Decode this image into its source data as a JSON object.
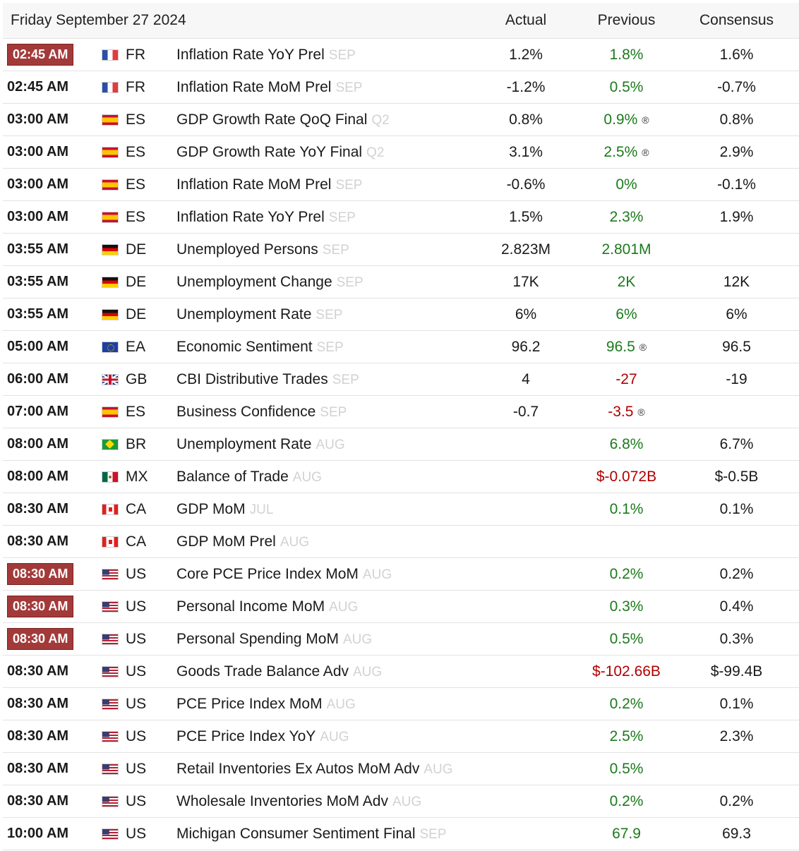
{
  "header": {
    "date": "Friday September 27 2024",
    "actual": "Actual",
    "previous": "Previous",
    "consensus": "Consensus"
  },
  "rows": [
    {
      "time": "02:45 AM",
      "important": true,
      "country": "FR",
      "event": "Inflation Rate YoY Prel",
      "ref": "SEP",
      "actual": "1.2%",
      "previous": "1.8%",
      "previous_tone": "pos",
      "revised": "",
      "consensus": "1.6%"
    },
    {
      "time": "02:45 AM",
      "important": false,
      "country": "FR",
      "event": "Inflation Rate MoM Prel",
      "ref": "SEP",
      "actual": "-1.2%",
      "previous": "0.5%",
      "previous_tone": "pos",
      "revised": "",
      "consensus": "-0.7%"
    },
    {
      "time": "03:00 AM",
      "important": false,
      "country": "ES",
      "event": "GDP Growth Rate QoQ Final",
      "ref": "Q2",
      "actual": "0.8%",
      "previous": "0.9%",
      "previous_tone": "pos",
      "revised": "®",
      "consensus": "0.8%"
    },
    {
      "time": "03:00 AM",
      "important": false,
      "country": "ES",
      "event": "GDP Growth Rate YoY Final",
      "ref": "Q2",
      "actual": "3.1%",
      "previous": "2.5%",
      "previous_tone": "pos",
      "revised": "®",
      "consensus": "2.9%"
    },
    {
      "time": "03:00 AM",
      "important": false,
      "country": "ES",
      "event": "Inflation Rate MoM Prel",
      "ref": "SEP",
      "actual": "-0.6%",
      "previous": "0%",
      "previous_tone": "pos",
      "revised": "",
      "consensus": "-0.1%"
    },
    {
      "time": "03:00 AM",
      "important": false,
      "country": "ES",
      "event": "Inflation Rate YoY Prel",
      "ref": "SEP",
      "actual": "1.5%",
      "previous": "2.3%",
      "previous_tone": "pos",
      "revised": "",
      "consensus": "1.9%"
    },
    {
      "time": "03:55 AM",
      "important": false,
      "country": "DE",
      "event": "Unemployed Persons",
      "ref": "SEP",
      "actual": "2.823M",
      "previous": "2.801M",
      "previous_tone": "pos",
      "revised": "",
      "consensus": ""
    },
    {
      "time": "03:55 AM",
      "important": false,
      "country": "DE",
      "event": "Unemployment Change",
      "ref": "SEP",
      "actual": "17K",
      "previous": "2K",
      "previous_tone": "pos",
      "revised": "",
      "consensus": "12K"
    },
    {
      "time": "03:55 AM",
      "important": false,
      "country": "DE",
      "event": "Unemployment Rate",
      "ref": "SEP",
      "actual": "6%",
      "previous": "6%",
      "previous_tone": "pos",
      "revised": "",
      "consensus": "6%"
    },
    {
      "time": "05:00 AM",
      "important": false,
      "country": "EA",
      "event": "Economic Sentiment",
      "ref": "SEP",
      "actual": "96.2",
      "previous": "96.5",
      "previous_tone": "pos",
      "revised": "®",
      "consensus": "96.5"
    },
    {
      "time": "06:00 AM",
      "important": false,
      "country": "GB",
      "event": "CBI Distributive Trades",
      "ref": "SEP",
      "actual": "4",
      "previous": "-27",
      "previous_tone": "neg",
      "revised": "",
      "consensus": "-19"
    },
    {
      "time": "07:00 AM",
      "important": false,
      "country": "ES",
      "event": "Business Confidence",
      "ref": "SEP",
      "actual": "-0.7",
      "previous": "-3.5",
      "previous_tone": "neg",
      "revised": "®",
      "consensus": ""
    },
    {
      "time": "08:00 AM",
      "important": false,
      "country": "BR",
      "event": "Unemployment Rate",
      "ref": "AUG",
      "actual": "",
      "previous": "6.8%",
      "previous_tone": "pos",
      "revised": "",
      "consensus": "6.7%"
    },
    {
      "time": "08:00 AM",
      "important": false,
      "country": "MX",
      "event": "Balance of Trade",
      "ref": "AUG",
      "actual": "",
      "previous": "$-0.072B",
      "previous_tone": "neg",
      "revised": "",
      "consensus": "$-0.5B"
    },
    {
      "time": "08:30 AM",
      "important": false,
      "country": "CA",
      "event": "GDP MoM",
      "ref": "JUL",
      "actual": "",
      "previous": "0.1%",
      "previous_tone": "pos",
      "revised": "",
      "consensus": "0.1%"
    },
    {
      "time": "08:30 AM",
      "important": false,
      "country": "CA",
      "event": "GDP MoM Prel",
      "ref": "AUG",
      "actual": "",
      "previous": "",
      "previous_tone": "pos",
      "revised": "",
      "consensus": ""
    },
    {
      "time": "08:30 AM",
      "important": true,
      "country": "US",
      "event": "Core PCE Price Index MoM",
      "ref": "AUG",
      "actual": "",
      "previous": "0.2%",
      "previous_tone": "pos",
      "revised": "",
      "consensus": "0.2%"
    },
    {
      "time": "08:30 AM",
      "important": true,
      "country": "US",
      "event": "Personal Income MoM",
      "ref": "AUG",
      "actual": "",
      "previous": "0.3%",
      "previous_tone": "pos",
      "revised": "",
      "consensus": "0.4%"
    },
    {
      "time": "08:30 AM",
      "important": true,
      "country": "US",
      "event": "Personal Spending MoM",
      "ref": "AUG",
      "actual": "",
      "previous": "0.5%",
      "previous_tone": "pos",
      "revised": "",
      "consensus": "0.3%"
    },
    {
      "time": "08:30 AM",
      "important": false,
      "country": "US",
      "event": "Goods Trade Balance Adv",
      "ref": "AUG",
      "actual": "",
      "previous": "$-102.66B",
      "previous_tone": "neg",
      "revised": "",
      "consensus": "$-99.4B"
    },
    {
      "time": "08:30 AM",
      "important": false,
      "country": "US",
      "event": "PCE Price Index MoM",
      "ref": "AUG",
      "actual": "",
      "previous": "0.2%",
      "previous_tone": "pos",
      "revised": "",
      "consensus": "0.1%"
    },
    {
      "time": "08:30 AM",
      "important": false,
      "country": "US",
      "event": "PCE Price Index YoY",
      "ref": "AUG",
      "actual": "",
      "previous": "2.5%",
      "previous_tone": "pos",
      "revised": "",
      "consensus": "2.3%"
    },
    {
      "time": "08:30 AM",
      "important": false,
      "country": "US",
      "event": "Retail Inventories Ex Autos MoM Adv",
      "ref": "AUG",
      "actual": "",
      "previous": "0.5%",
      "previous_tone": "pos",
      "revised": "",
      "consensus": ""
    },
    {
      "time": "08:30 AM",
      "important": false,
      "country": "US",
      "event": "Wholesale Inventories MoM Adv",
      "ref": "AUG",
      "actual": "",
      "previous": "0.2%",
      "previous_tone": "pos",
      "revised": "",
      "consensus": "0.2%"
    },
    {
      "time": "10:00 AM",
      "important": false,
      "country": "US",
      "event": "Michigan Consumer Sentiment Final",
      "ref": "SEP",
      "actual": "",
      "previous": "67.9",
      "previous_tone": "pos",
      "revised": "",
      "consensus": "69.3"
    }
  ],
  "colors": {
    "positive": "#1b7a1b",
    "negative": "#b00000",
    "important_badge": "#a33a3a"
  }
}
